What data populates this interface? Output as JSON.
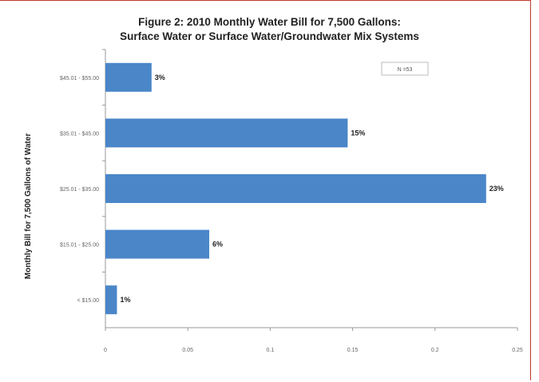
{
  "chart_data": {
    "type": "bar",
    "orientation": "horizontal",
    "title_line1": "Figure 2: 2010 Monthly Water Bill for 7,500 Gallons:",
    "title_line2": "Surface Water or Surface Water/Groundwater Mix Systems",
    "ylabel": "Monthly Bill for 7,500 Gallons of Water",
    "annotation": "N =53",
    "categories": [
      "$45.01 - $55.00",
      "$35.01 - $45.00",
      "$25.01 - $35.00",
      "$15.01 - $25.00",
      "< $15.00"
    ],
    "values": [
      0.028,
      0.147,
      0.231,
      0.063,
      0.007
    ],
    "data_labels": [
      "3%",
      "15%",
      "23%",
      "6%",
      "1%"
    ],
    "xticks": [
      "0",
      "0.05",
      "0.1",
      "0.15",
      "0.2",
      "0.25"
    ],
    "xlim": [
      0,
      0.25
    ],
    "bar_color": "#4a86c8",
    "grid": false
  }
}
